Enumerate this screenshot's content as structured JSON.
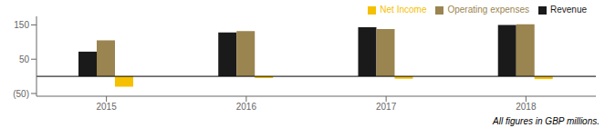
{
  "chart_data": {
    "type": "bar",
    "categories": [
      "2015",
      "2016",
      "2017",
      "2018"
    ],
    "series": [
      {
        "name": "Revenue",
        "color": "#1a1a1a",
        "values": [
          72,
          128,
          143,
          150
        ]
      },
      {
        "name": "Operating expenses",
        "color": "#9a8450",
        "values": [
          105,
          132,
          138,
          152
        ]
      },
      {
        "name": "Net Income",
        "color": "#f5c000",
        "values": [
          -30,
          -5,
          -7,
          -8
        ]
      }
    ],
    "ylim": [
      -58,
      175
    ],
    "yticks": [
      150,
      50,
      {
        "value": -50,
        "label": "(50)"
      }
    ],
    "grid": false,
    "legend": "upper right",
    "annotations": [
      "All figures in GBP millions."
    ]
  }
}
